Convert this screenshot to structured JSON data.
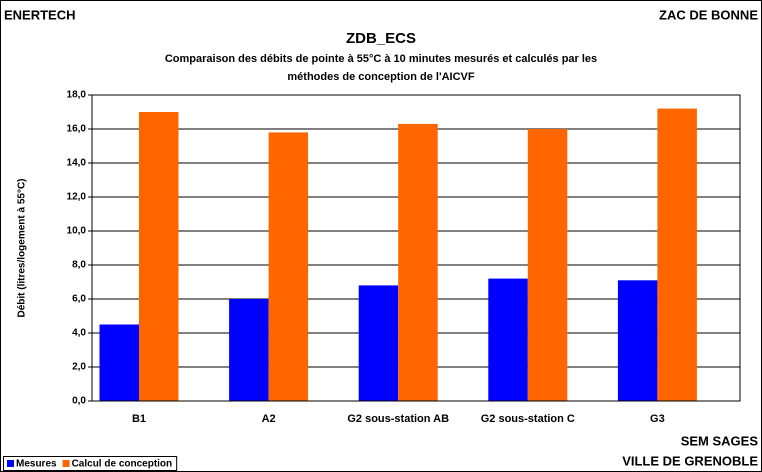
{
  "chart_data": {
    "type": "bar",
    "header_left": "ENERTECH",
    "header_right": "ZAC DE BONNE",
    "title": "ZDB_ECS",
    "subtitle": [
      "Comparaison des débits de pointe à 55°C à 10 minutes mesurés et calculés par les",
      "méthodes de conception de l'AICVF"
    ],
    "y_label": "Débit (litres/logement à 55°C)",
    "footer_right": [
      "SEM SAGES",
      "VILLE DE GRENOBLE"
    ],
    "categories": [
      "B1",
      "A2",
      "G2 sous-station AB",
      "G2 sous-station C",
      "G3"
    ],
    "series": [
      {
        "name": "Mesures",
        "color": "#0000ff",
        "values": [
          4.5,
          6.0,
          6.8,
          7.2,
          7.1
        ]
      },
      {
        "name": "Calcul de conception",
        "color": "#ff6600",
        "values": [
          17.0,
          15.8,
          16.3,
          16.0,
          17.2
        ]
      }
    ],
    "ylim": [
      0,
      18
    ],
    "yticks": [
      {
        "value": 0,
        "label": "0,0"
      },
      {
        "value": 2,
        "label": "2,0"
      },
      {
        "value": 4,
        "label": "4,0"
      },
      {
        "value": 6,
        "label": "6,0"
      },
      {
        "value": 8,
        "label": "8,0"
      },
      {
        "value": 10,
        "label": "10,0"
      },
      {
        "value": 12,
        "label": "12,0"
      },
      {
        "value": 14,
        "label": "14,0"
      },
      {
        "value": 16,
        "label": "16,0"
      },
      {
        "value": 18,
        "label": "18,0"
      }
    ],
    "grid": true,
    "legend": "bottom-left"
  }
}
